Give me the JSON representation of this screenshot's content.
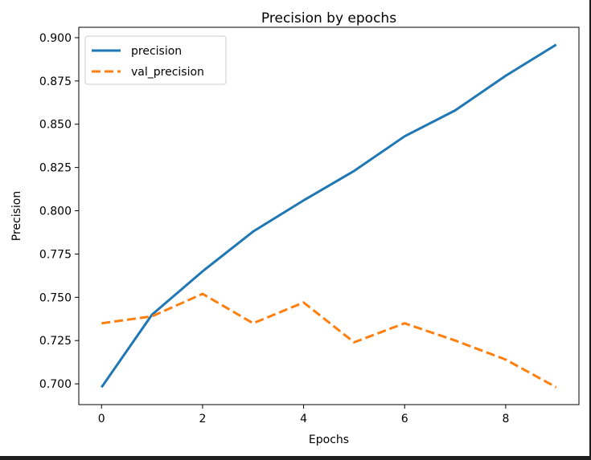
{
  "chart_data": {
    "type": "line",
    "title": "Precision by epochs",
    "xlabel": "Epochs",
    "ylabel": "Precision",
    "x": [
      0,
      1,
      2,
      3,
      4,
      5,
      6,
      7,
      8,
      9
    ],
    "series": [
      {
        "name": "precision",
        "color": "#1f77b4",
        "style": "solid",
        "values": [
          0.698,
          0.74,
          0.765,
          0.788,
          0.806,
          0.823,
          0.843,
          0.858,
          0.878,
          0.896
        ]
      },
      {
        "name": "val_precision",
        "color": "#ff7f0e",
        "style": "dashed",
        "values": [
          0.735,
          0.739,
          0.752,
          0.735,
          0.747,
          0.724,
          0.735,
          0.725,
          0.714,
          0.698
        ]
      }
    ],
    "xlim": [
      -0.45,
      9.45
    ],
    "ylim": [
      0.688,
      0.906
    ],
    "xticks": [
      0,
      2,
      4,
      6,
      8
    ],
    "xtick_labels": [
      "0",
      "2",
      "4",
      "6",
      "8"
    ],
    "yticks": [
      0.7,
      0.725,
      0.75,
      0.775,
      0.8,
      0.825,
      0.85,
      0.875,
      0.9
    ],
    "ytick_labels": [
      "0.700",
      "0.725",
      "0.750",
      "0.775",
      "0.800",
      "0.825",
      "0.850",
      "0.875",
      "0.900"
    ],
    "legend_position": "upper-left",
    "grid": false
  }
}
